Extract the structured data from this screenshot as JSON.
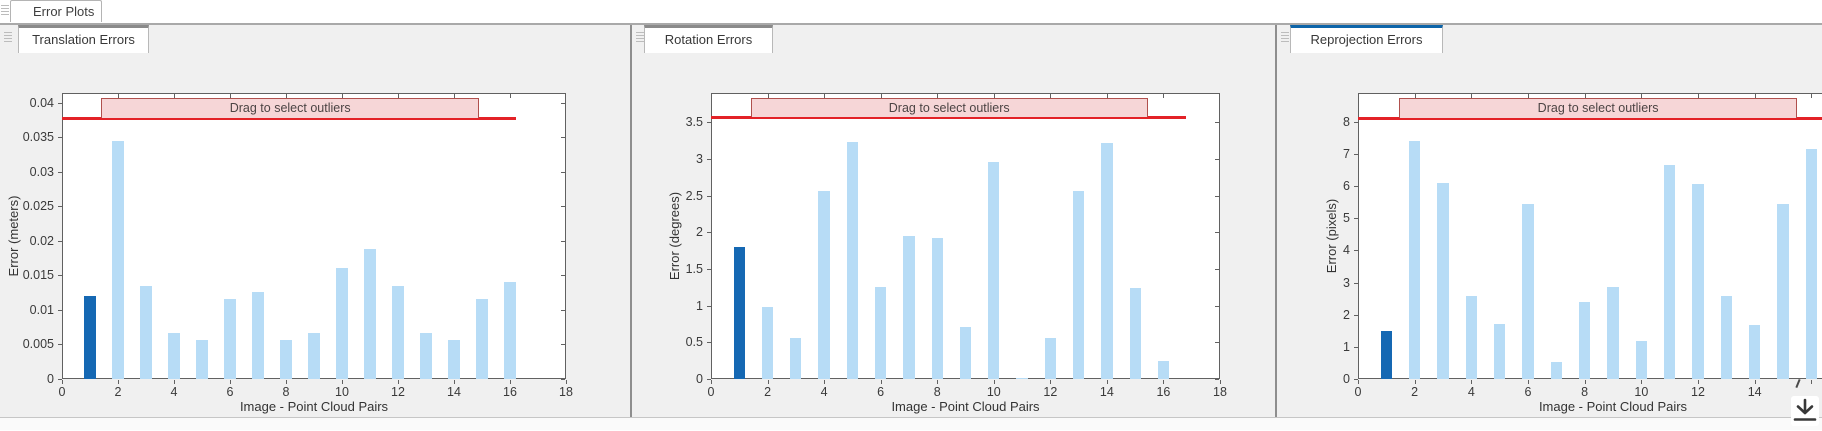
{
  "app": {
    "document_tab": "Error Plots",
    "export_icon": "download-arrow-icon"
  },
  "panels": [
    {
      "tab_label": "Translation Errors",
      "accent": "gray",
      "active": true
    },
    {
      "tab_label": "Rotation Errors",
      "accent": "gray",
      "active": true
    },
    {
      "tab_label": "Reprojection Errors",
      "accent": "blue",
      "active": true
    }
  ],
  "colors": {
    "bar": "#b7dcf6",
    "bar_selected": "#1568b3",
    "threshold_line": "#e32227",
    "band_fill": "#f6d6d7",
    "band_border": "#b0504d",
    "accent_gray": "#8a8a8a",
    "accent_blue": "#0d64a8",
    "panel_background": "#f0f0f0"
  },
  "chart_data": [
    {
      "type": "bar",
      "title": "Translation Errors",
      "xlabel": "Image - Point Cloud Pairs",
      "ylabel": "Error (meters)",
      "categories": [
        1,
        2,
        3,
        4,
        5,
        6,
        7,
        8,
        9,
        10,
        11,
        12,
        13,
        14,
        15,
        16
      ],
      "values": [
        0.012,
        0.0345,
        0.0135,
        0.0066,
        0.0057,
        0.0116,
        0.0126,
        0.0056,
        0.0067,
        0.016,
        0.0188,
        0.0135,
        0.0066,
        0.0057,
        0.0116,
        0.014
      ],
      "selected_bar_index": 0,
      "outlier_threshold": 0.0378,
      "drag_band_label": "Drag to select outliers",
      "band_x_range": [
        1.4,
        14.9
      ],
      "line_x_range": [
        0,
        16.2
      ],
      "xlim": [
        0,
        18
      ],
      "ylim": [
        0,
        0.0414
      ],
      "yticks": [
        0,
        0.005,
        0.01,
        0.015,
        0.02,
        0.025,
        0.03,
        0.035,
        0.04
      ],
      "ytick_labels": [
        "0",
        "0.005",
        "0.01",
        "0.015",
        "0.02",
        "0.025",
        "0.03",
        "0.035",
        "0.04"
      ],
      "xticks": [
        0,
        2,
        4,
        6,
        8,
        10,
        12,
        14,
        16,
        18
      ],
      "grid": false,
      "legend": null
    },
    {
      "type": "bar",
      "title": "Rotation Errors",
      "xlabel": "Image - Point Cloud Pairs",
      "ylabel": "Error (degrees)",
      "categories": [
        1,
        2,
        3,
        4,
        5,
        6,
        7,
        8,
        9,
        10,
        11,
        12,
        13,
        14,
        15,
        16
      ],
      "values": [
        1.8,
        0.98,
        0.56,
        2.56,
        3.23,
        1.25,
        1.95,
        1.92,
        0.71,
        2.96,
        0.02,
        0.56,
        2.56,
        3.22,
        1.24,
        0.24
      ],
      "selected_bar_index": 0,
      "outlier_threshold": 3.57,
      "drag_band_label": "Drag to select outliers",
      "band_x_range": [
        1.4,
        15.45
      ],
      "line_x_range": [
        0,
        16.8
      ],
      "xlim": [
        0,
        18
      ],
      "ylim": [
        0,
        3.9
      ],
      "yticks": [
        0,
        0.5,
        1,
        1.5,
        2,
        2.5,
        3,
        3.5
      ],
      "ytick_labels": [
        "0",
        "0.5",
        "1",
        "1.5",
        "2",
        "2.5",
        "3",
        "3.5"
      ],
      "xticks": [
        0,
        2,
        4,
        6,
        8,
        10,
        12,
        14,
        16,
        18
      ],
      "grid": false,
      "legend": null
    },
    {
      "type": "bar",
      "title": "Reprojection Errors",
      "xlabel": "Image - Point Cloud Pairs",
      "ylabel": "Error (pixels)",
      "categories": [
        1,
        2,
        3,
        4,
        5,
        6,
        7,
        8,
        9,
        10,
        11,
        12,
        13,
        14,
        15,
        16
      ],
      "values": [
        1.5,
        7.4,
        6.1,
        2.57,
        1.71,
        5.44,
        0.53,
        2.39,
        2.86,
        1.18,
        6.67,
        6.08,
        2.57,
        1.67,
        5.46,
        7.17
      ],
      "selected_bar_index": 0,
      "outlier_threshold": 8.13,
      "drag_band_label": "Drag to select outliers",
      "band_x_range": [
        1.45,
        15.5
      ],
      "line_x_range": [
        0,
        17
      ],
      "xlim": [
        0,
        18
      ],
      "ylim": [
        0,
        8.9
      ],
      "yticks": [
        0,
        1,
        2,
        3,
        4,
        5,
        6,
        7,
        8
      ],
      "ytick_labels": [
        "0",
        "1",
        "2",
        "3",
        "4",
        "5",
        "6",
        "7",
        "8"
      ],
      "xticks": [
        0,
        2,
        4,
        6,
        8,
        10,
        12,
        14
      ],
      "grid": false,
      "legend": null
    }
  ]
}
